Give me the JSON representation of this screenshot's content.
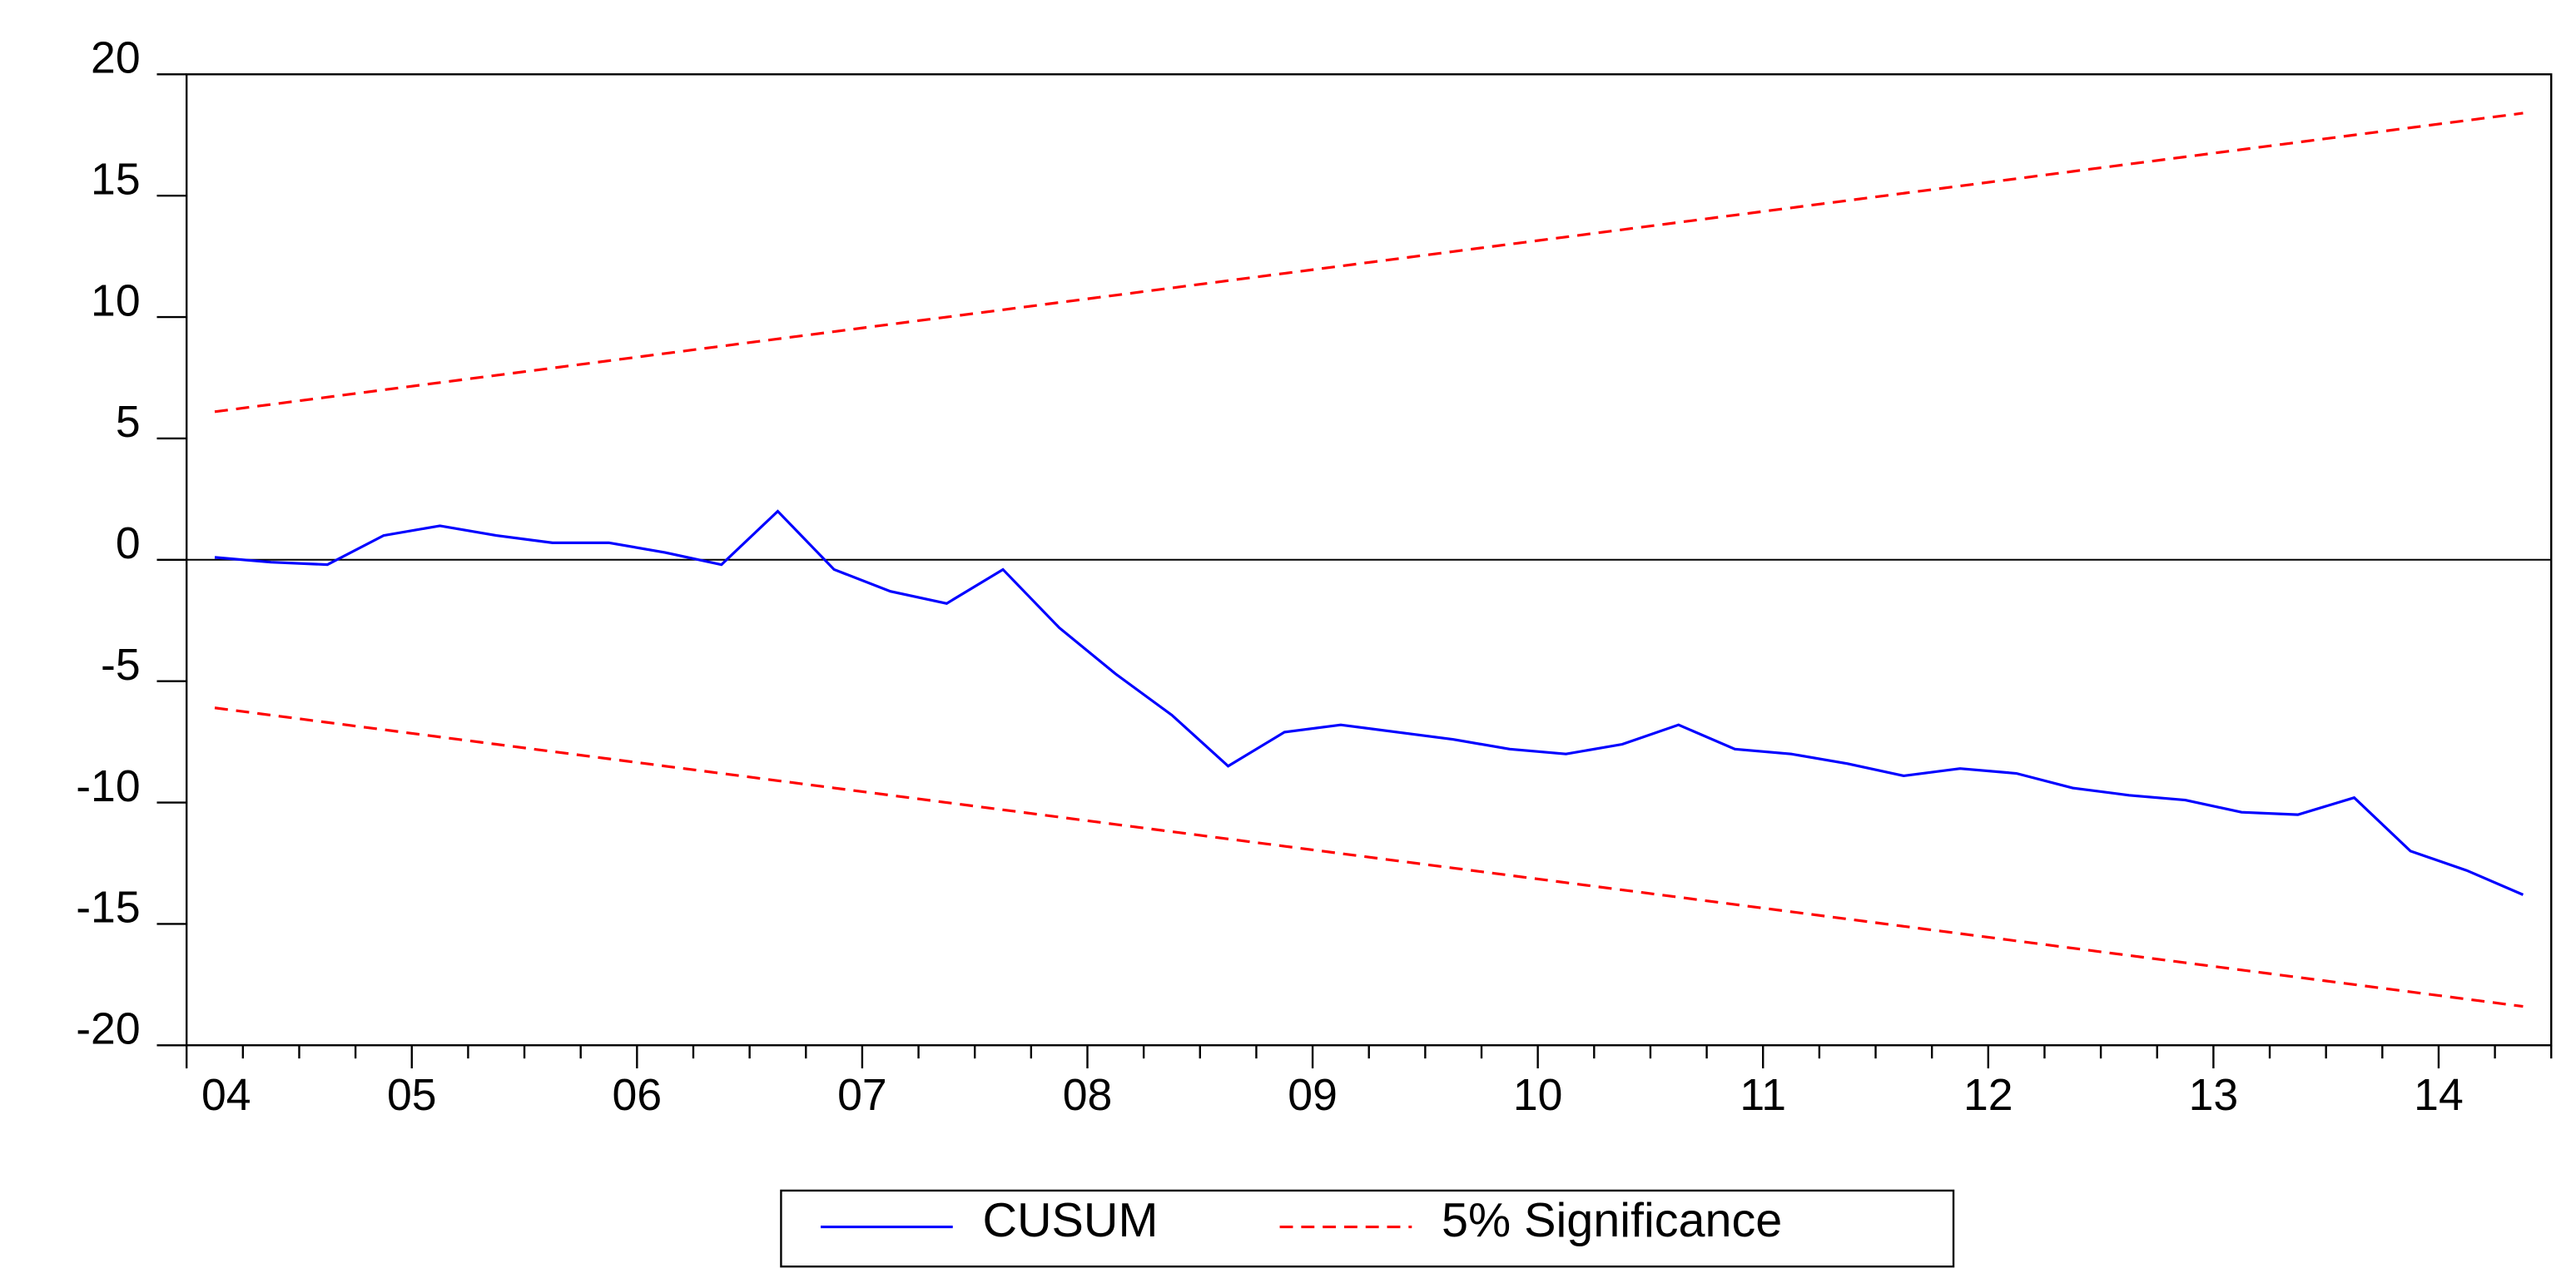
{
  "chart_data": {
    "type": "line",
    "categories": [
      "04",
      null,
      null,
      null,
      "05",
      null,
      null,
      null,
      "06",
      null,
      null,
      null,
      "07",
      null,
      null,
      null,
      "08",
      null,
      null,
      null,
      "09",
      null,
      null,
      null,
      "10",
      null,
      null,
      null,
      "11",
      null,
      null,
      null,
      "12",
      null,
      null,
      null,
      "13",
      null,
      null,
      null,
      "14",
      null
    ],
    "series": [
      {
        "name": "CUSUM",
        "color": "#0000ff",
        "dashed": false,
        "values": [
          0.1,
          -0.1,
          -0.2,
          1.0,
          1.4,
          1.0,
          0.7,
          0.7,
          0.3,
          -0.2,
          2.0,
          -0.4,
          -1.3,
          -1.8,
          -0.4,
          -2.8,
          -4.7,
          -6.4,
          -8.5,
          -7.1,
          -6.8,
          -7.1,
          -7.4,
          -7.8,
          -8.0,
          -7.6,
          -6.8,
          -7.8,
          -8.0,
          -8.4,
          -8.9,
          -8.6,
          -8.8,
          -9.4,
          -9.7,
          -9.9,
          -10.4,
          -10.5,
          -9.8,
          -12.0,
          -12.8,
          -13.8
        ]
      },
      {
        "name": "5% Significance",
        "color": "#ff0000",
        "dashed": true,
        "values": [
          6.1,
          6.4,
          6.7,
          7.0,
          7.3,
          7.6,
          7.9,
          8.2,
          8.5,
          8.8,
          9.1,
          9.4,
          9.7,
          10.0,
          10.3,
          10.6,
          10.9,
          11.2,
          11.5,
          11.8,
          12.1,
          12.4,
          12.7,
          13.0,
          13.3,
          13.6,
          13.9,
          14.2,
          14.5,
          14.8,
          15.1,
          15.4,
          15.7,
          16.0,
          16.3,
          16.6,
          16.9,
          17.2,
          17.5,
          17.8,
          18.1,
          18.4
        ],
        "values_lower": [
          -6.1,
          -6.4,
          -6.7,
          -7.0,
          -7.3,
          -7.6,
          -7.9,
          -8.2,
          -8.5,
          -8.8,
          -9.1,
          -9.4,
          -9.7,
          -10.0,
          -10.3,
          -10.6,
          -10.9,
          -11.2,
          -11.5,
          -11.8,
          -12.1,
          -12.4,
          -12.7,
          -13.0,
          -13.3,
          -13.6,
          -13.9,
          -14.2,
          -14.5,
          -14.8,
          -15.1,
          -15.4,
          -15.7,
          -16.0,
          -16.3,
          -16.6,
          -16.9,
          -17.2,
          -17.5,
          -17.8,
          -18.1,
          -18.4
        ]
      }
    ],
    "ylim": [
      -20,
      20
    ],
    "yticks": [
      -20,
      -15,
      -10,
      -5,
      0,
      5,
      10,
      15,
      20
    ],
    "grid": false,
    "zero_line": true,
    "legend": "bottom"
  }
}
